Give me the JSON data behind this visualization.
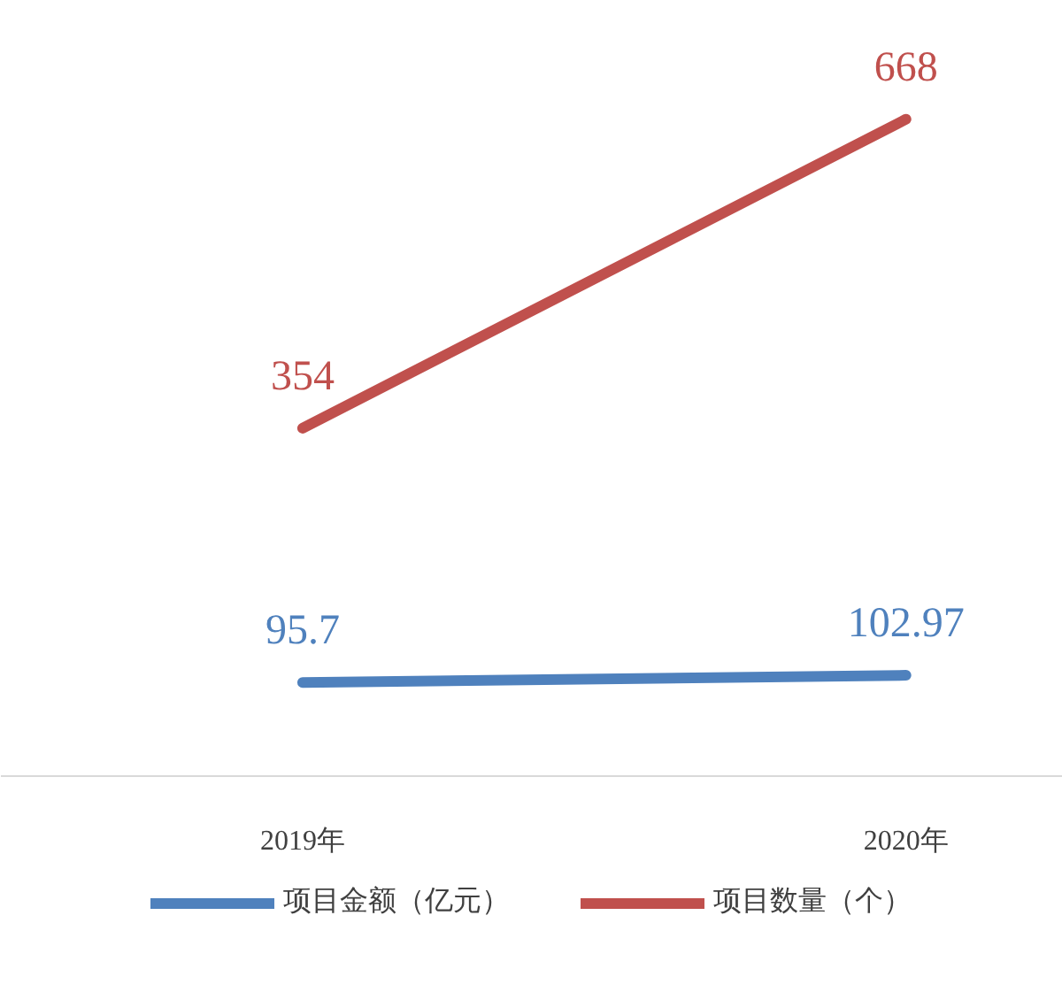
{
  "chart_data": {
    "type": "line",
    "categories": [
      "2019年",
      "2020年"
    ],
    "series": [
      {
        "name": "项目金额（亿元）",
        "color": "#4f81bd",
        "values": [
          95.7,
          102.97
        ]
      },
      {
        "name": "项目数量（个）",
        "color": "#c0504d",
        "values": [
          354,
          668
        ]
      }
    ],
    "data_labels": true,
    "legend": "bottom",
    "grid": false,
    "marker": "none",
    "line_style": "solid"
  }
}
